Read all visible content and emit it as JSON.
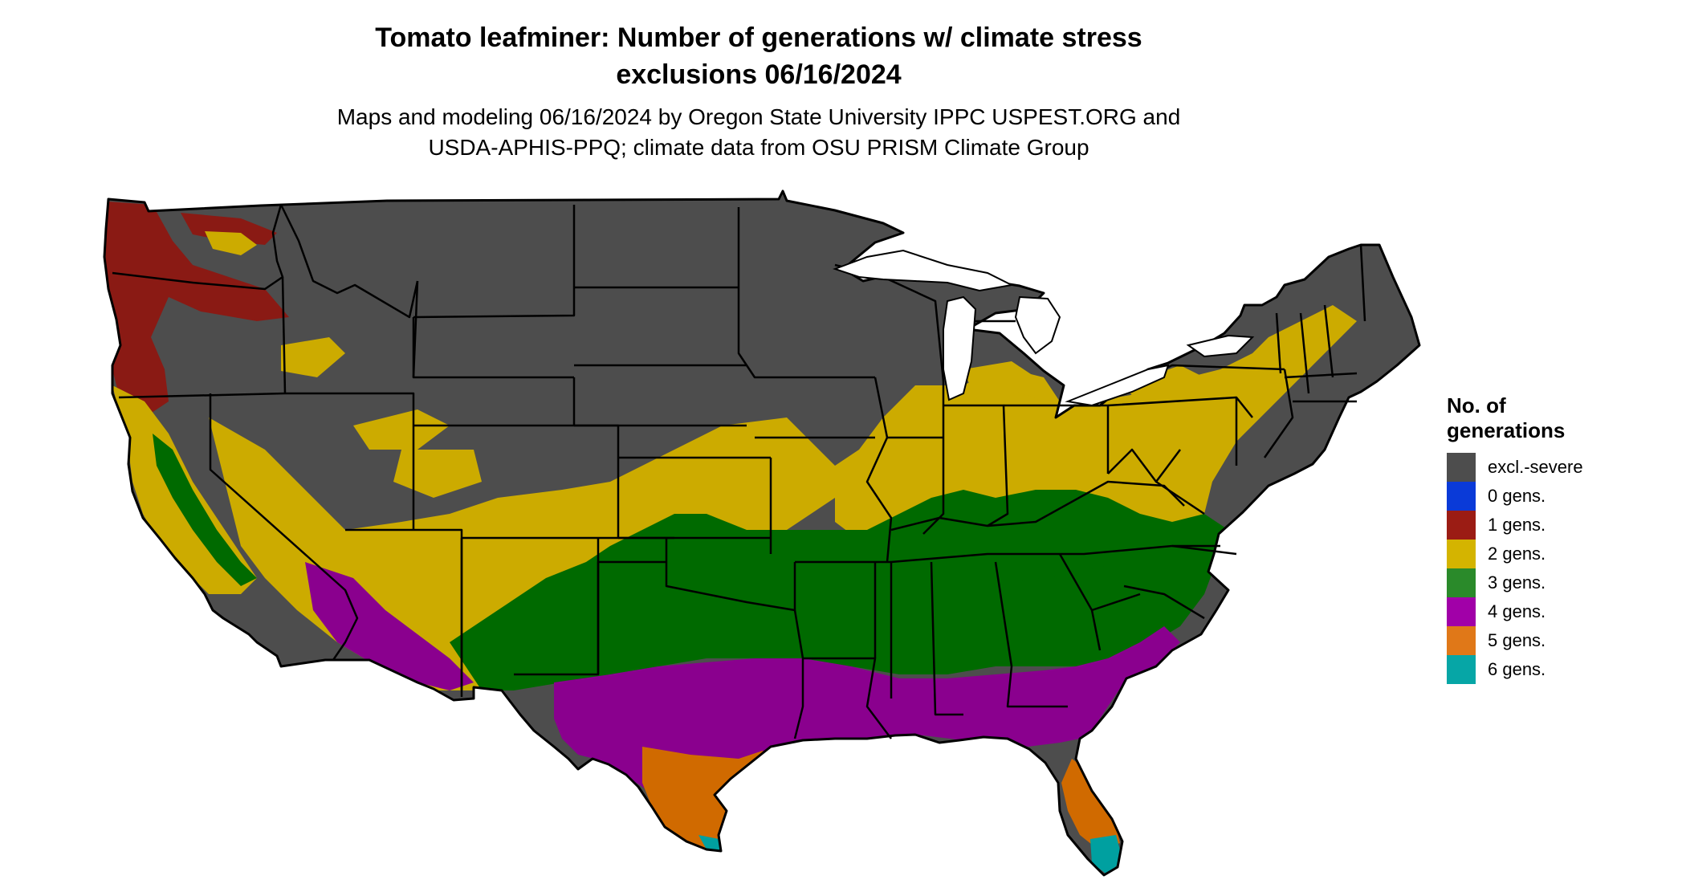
{
  "title": {
    "line1": "Tomato leafminer: Number of generations w/ climate stress",
    "line2": "exclusions 06/16/2024"
  },
  "subtitle": {
    "line1": "Maps and modeling 06/16/2024 by Oregon State University IPPC USPEST.ORG and",
    "line2": "USDA-APHIS-PPQ; climate data from OSU PRISM Climate Group"
  },
  "legend": {
    "title_line1": "No. of",
    "title_line2": "generations",
    "items": [
      {
        "label": "excl.-severe",
        "color": "#4d4d4d"
      },
      {
        "label": "0 gens.",
        "color": "#0a3ad8"
      },
      {
        "label": "1 gens.",
        "color": "#9b1c14"
      },
      {
        "label": "2 gens.",
        "color": "#d4b400"
      },
      {
        "label": "3 gens.",
        "color": "#2a8a2a"
      },
      {
        "label": "4 gens.",
        "color": "#a100a8"
      },
      {
        "label": "5 gens.",
        "color": "#e07818"
      },
      {
        "label": "6 gens.",
        "color": "#06a6a6"
      }
    ]
  },
  "map": {
    "region": "contiguous-united-states",
    "zone_colors": {
      "excluded": "#4d4d4d",
      "one_gen": "#8a1a14",
      "two_gens": "#ccab00",
      "three_gens": "#006a00",
      "four_gens": "#8a008e",
      "five_gens": "#d06a00",
      "six_gens": "#00a0a0",
      "state_borders": "#000000"
    }
  }
}
